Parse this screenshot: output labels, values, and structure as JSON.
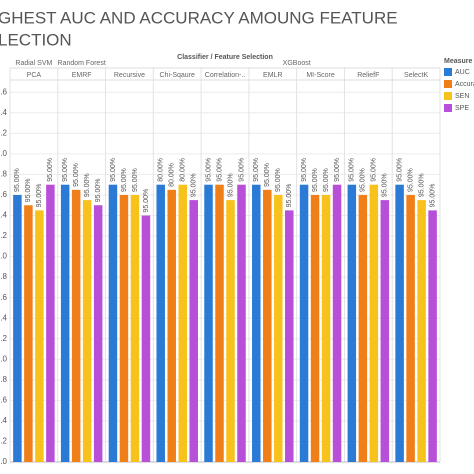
{
  "chart_data": {
    "type": "bar",
    "title": "GHEST AUC  AND ACCURACY AMOUNG FEATURE",
    "subtitle": "LECTION",
    "header": "Classifier / Feature Selection",
    "classifiers": [
      "Radial SVM",
      "Random Forest",
      "XGBoost"
    ],
    "categories": [
      "PCA",
      "EMRF",
      "Recursive",
      "Chi-Sqaure",
      "Correlation-..",
      "EMLR",
      "MI-Score",
      "ReliefF",
      "SelectK"
    ],
    "legend_title": "Measure",
    "series": [
      {
        "name": "AUC",
        "color": "#2b7bd6",
        "values": [
          2.6,
          2.7,
          2.7,
          2.7,
          2.7,
          2.7,
          2.7,
          2.7,
          2.7
        ],
        "bar_labels": [
          "95.00%",
          "95.00%",
          "95.00%",
          "80.00%",
          "95.00%",
          "95.00%",
          "95.00%",
          "95.00%",
          "95.00%"
        ]
      },
      {
        "name": "Accura..",
        "color": "#f07f1a",
        "values": [
          2.5,
          2.65,
          2.6,
          2.65,
          2.7,
          2.65,
          2.6,
          2.6,
          2.6
        ],
        "bar_labels": [
          "95.00%",
          "95.00%",
          "95.00%",
          "80.00%",
          "95.00%",
          "95.00%",
          "95.00%",
          "95.00%",
          "95.00%"
        ]
      },
      {
        "name": "SEN",
        "color": "#f8c21c",
        "values": [
          2.45,
          2.55,
          2.6,
          2.7,
          2.55,
          2.6,
          2.6,
          2.7,
          2.55
        ],
        "bar_labels": [
          "95.00%",
          "95.00%",
          "95.00%",
          "80.00%",
          "95.00%",
          "95.00%",
          "95.00%",
          "95.00%",
          "95.00%"
        ]
      },
      {
        "name": "SPE",
        "color": "#b84fd9",
        "values": [
          2.7,
          2.5,
          2.4,
          2.55,
          2.7,
          2.45,
          2.7,
          2.55,
          2.45
        ],
        "bar_labels": [
          "95.00%",
          "95.00%",
          "95.00%",
          "95.00%",
          "95.00%",
          "95.00%",
          "95.00%",
          "95.00%",
          "95.00%"
        ]
      }
    ],
    "ylim": [
      0,
      3.7
    ],
    "yticks": [
      {
        "value": 0,
        "label": "0.0"
      },
      0.2,
      0.4,
      0.6,
      0.8,
      {
        "value": 1,
        "label": "1.0"
      },
      1.2,
      1.4,
      1.6,
      1.8,
      {
        "value": 2,
        "label": "2.0"
      },
      2.2,
      2.4,
      2.6,
      2.8,
      {
        "value": 3,
        "label": "3.0"
      },
      3.2,
      3.4,
      3.6
    ],
    "grid": true
  }
}
